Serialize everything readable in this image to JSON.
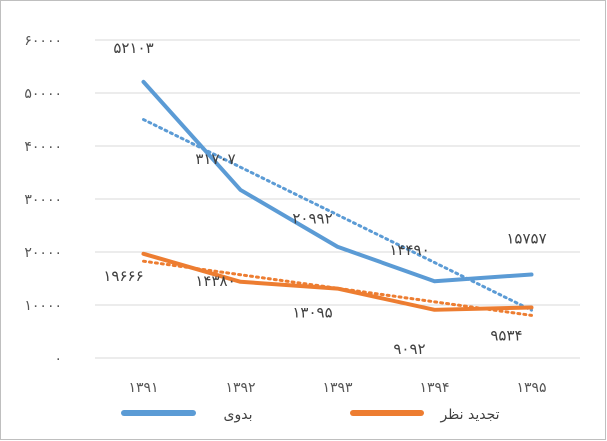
{
  "chart_data": {
    "type": "line",
    "categories": [
      "۱۳۹۱",
      "۱۳۹۲",
      "۱۳۹۳",
      "۱۳۹۴",
      "۱۳۹۵"
    ],
    "ylim": [
      0,
      60000
    ],
    "yticks": [
      0,
      10000,
      20000,
      30000,
      40000,
      50000,
      60000
    ],
    "ytick_labels": [
      "۰",
      "۱۰۰۰۰",
      "۲۰۰۰۰",
      "۳۰۰۰۰",
      "۴۰۰۰۰",
      "۵۰۰۰۰",
      "۶۰۰۰۰"
    ],
    "grid": true,
    "legend_position": "bottom",
    "trendline": "linear, dotted",
    "series": [
      {
        "name": "بدوی",
        "color": "#5b9bd5",
        "values": [
          52103,
          31707,
          20992,
          14490,
          15757
        ],
        "labels": [
          "۵۲۱۰۳",
          "۳۱۷۰۷",
          "۲۰۹۹۲",
          "۱۴۴۹۰",
          "۱۵۷۵۷"
        ]
      },
      {
        "name": "تجدید نظر",
        "color": "#ed7d31",
        "values": [
          19666,
          14380,
          13095,
          9092,
          9534
        ],
        "labels": [
          "۱۹۶۶۶",
          "۱۴۳۸۰",
          "۱۳۰۹۵",
          "۹۰۹۲",
          "۹۵۳۴"
        ]
      }
    ]
  }
}
